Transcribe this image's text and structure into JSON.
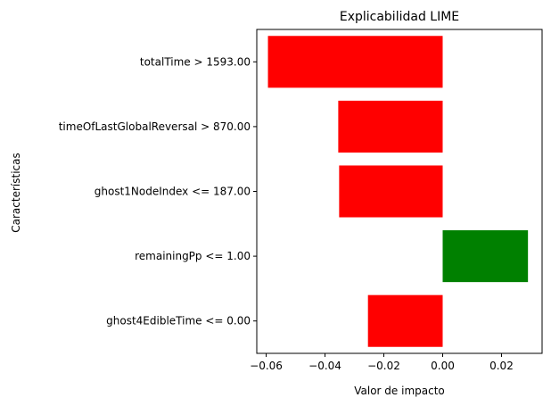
{
  "chart_data": {
    "type": "bar",
    "orientation": "horizontal",
    "title": "Explicabilidad LIME",
    "xlabel": "Valor de impacto",
    "ylabel": "Características",
    "categories": [
      "totalTime > 1593.00",
      "timeOfLastGlobalReversal > 870.00",
      "ghost1NodeIndex <= 187.00",
      "remainingPp <= 1.00",
      "ghost4EdibleTime <= 0.00"
    ],
    "values": [
      -0.0594,
      -0.0355,
      -0.0352,
      0.029,
      -0.0254
    ],
    "xlim": [
      -0.0632,
      0.0338
    ],
    "xticks": [
      -0.06,
      -0.04,
      -0.02,
      0.0,
      0.02
    ],
    "xtick_labels": [
      "−0.06",
      "−0.04",
      "−0.02",
      "0.00",
      "0.02"
    ],
    "colors": {
      "positive": "#008000",
      "negative": "#ff0000"
    },
    "grid": false,
    "legend": "none"
  }
}
